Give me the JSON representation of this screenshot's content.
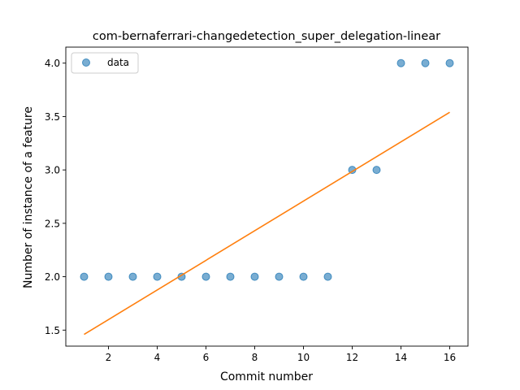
{
  "chart_data": {
    "type": "scatter",
    "title": "com-bernaferrari-changedetection_super_delegation-linear",
    "xlabel": "Commit number",
    "ylabel": "Number of instance of a feature",
    "xlim": [
      0.25,
      16.75
    ],
    "ylim": [
      1.35,
      4.15
    ],
    "xticks": [
      2,
      4,
      6,
      8,
      10,
      12,
      14,
      16
    ],
    "xtick_labels": [
      "2",
      "4",
      "6",
      "8",
      "10",
      "12",
      "14",
      "16"
    ],
    "yticks": [
      1.5,
      2.0,
      2.5,
      3.0,
      3.5,
      4.0
    ],
    "ytick_labels": [
      "1.5",
      "2.0",
      "2.5",
      "3.0",
      "3.5",
      "4.0"
    ],
    "grid": false,
    "legend_position": "upper-left",
    "series": [
      {
        "name": "data",
        "kind": "scatter",
        "color": "#1f77b4",
        "x": [
          1,
          2,
          3,
          4,
          5,
          6,
          7,
          8,
          9,
          10,
          11,
          12,
          13,
          14,
          15,
          16
        ],
        "y": [
          2,
          2,
          2,
          2,
          2,
          2,
          2,
          2,
          2,
          2,
          2,
          3,
          3,
          4,
          4,
          4
        ]
      },
      {
        "kind": "line",
        "color": "#ff7f0e",
        "x": [
          1,
          16
        ],
        "y": [
          1.46,
          3.54
        ]
      }
    ]
  }
}
